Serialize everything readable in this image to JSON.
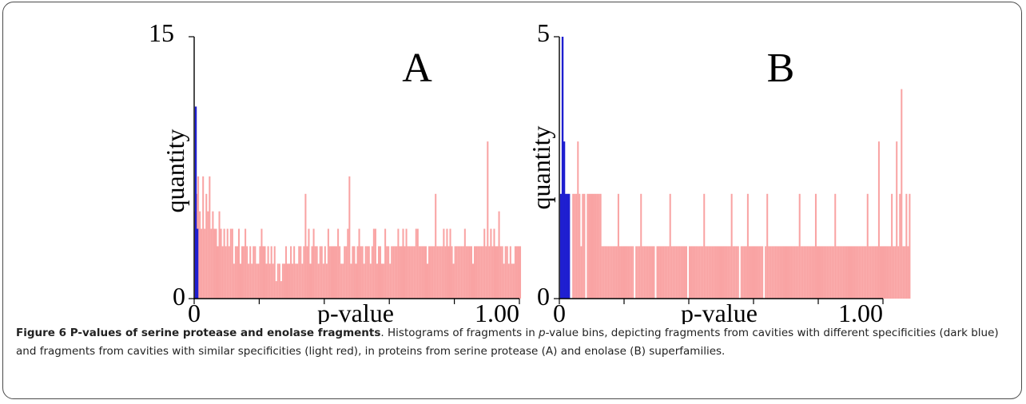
{
  "chart_data": [
    {
      "type": "bar",
      "panel_label": "A",
      "xlabel": "p-value",
      "ylabel": "quantity",
      "xlim": [
        0,
        1
      ],
      "ylim": [
        0,
        15
      ],
      "ytick_labels": [
        "0",
        "15"
      ],
      "xtick_labels": [
        "0",
        "1.00"
      ],
      "colors": {
        "different_specificity": "#1f1fd0",
        "similar_specificity": "#f9a3a3"
      },
      "series": [
        {
          "color": "different_specificity",
          "x": [
            0.005,
            0.01
          ],
          "values": [
            11,
            4
          ]
        },
        {
          "color": "similar_specificity",
          "x_start": 0.0,
          "x_step": 0.005,
          "values": [
            5,
            6,
            7,
            5,
            4,
            7,
            4,
            6,
            5,
            7,
            4,
            5,
            4,
            4,
            3,
            5,
            4,
            3,
            4,
            3,
            4,
            3,
            4,
            4,
            2,
            3,
            3,
            4,
            2,
            3,
            3,
            4,
            3,
            2,
            3,
            2,
            3,
            3,
            2,
            2,
            3,
            4,
            3,
            3,
            2,
            3,
            2,
            3,
            2,
            3,
            1,
            2,
            2,
            1,
            2,
            2,
            3,
            2,
            2,
            3,
            2,
            3,
            2,
            2,
            3,
            3,
            2,
            3,
            6,
            3,
            4,
            2,
            3,
            4,
            3,
            3,
            2,
            3,
            3,
            2,
            3,
            2,
            4,
            3,
            3,
            3,
            3,
            3,
            4,
            3,
            2,
            2,
            3,
            3,
            4,
            7,
            2,
            3,
            3,
            2,
            3,
            4,
            3,
            3,
            2,
            3,
            3,
            3,
            2,
            3,
            4,
            4,
            2,
            3,
            3,
            2,
            2,
            4,
            3,
            3,
            2,
            3,
            3,
            3,
            3,
            4,
            3,
            3,
            4,
            3,
            4,
            3,
            3,
            3,
            3,
            3,
            4,
            4,
            3,
            3,
            3,
            3,
            3,
            2,
            3,
            3,
            3,
            3,
            6,
            3,
            3,
            3,
            3,
            4,
            3,
            4,
            3,
            4,
            3,
            2,
            3,
            3,
            3,
            3,
            3,
            3,
            4,
            3,
            3,
            3,
            3,
            2,
            3,
            3,
            3,
            3,
            3,
            3,
            4,
            3,
            9,
            3,
            4,
            3,
            4,
            3,
            3,
            5,
            3,
            3,
            2,
            3,
            3,
            2,
            3,
            2,
            2,
            3,
            3,
            3,
            3
          ]
        }
      ]
    },
    {
      "type": "bar",
      "panel_label": "B",
      "xlabel": "p-value",
      "ylabel": "quantity",
      "xlim": [
        0,
        1
      ],
      "ylim": [
        0,
        5
      ],
      "ytick_labels": [
        "0",
        "5"
      ],
      "xtick_labels": [
        "0",
        "1.00"
      ],
      "colors": {
        "different_specificity": "#1f1fd0",
        "similar_specificity": "#f9a3a3"
      },
      "series": [
        {
          "color": "different_specificity",
          "x": [
            0.005,
            0.01,
            0.015,
            0.02,
            0.025,
            0.03
          ],
          "values": [
            2,
            5,
            3,
            2,
            2,
            2
          ]
        },
        {
          "color": "similar_specificity",
          "x_start": 0.04,
          "x_step": 0.005,
          "values": [
            2,
            2,
            2,
            3,
            2,
            1,
            2,
            2,
            0,
            2,
            2,
            2,
            2,
            2,
            2,
            2,
            2,
            2,
            1,
            1,
            1,
            1,
            1,
            1,
            1,
            1,
            1,
            1,
            2,
            1,
            1,
            1,
            1,
            1,
            1,
            1,
            1,
            1,
            0,
            1,
            1,
            1,
            2,
            1,
            1,
            1,
            1,
            1,
            1,
            1,
            1,
            0,
            1,
            1,
            1,
            1,
            1,
            1,
            1,
            1,
            2,
            1,
            1,
            1,
            1,
            1,
            1,
            1,
            1,
            1,
            1,
            0,
            1,
            1,
            1,
            1,
            1,
            1,
            1,
            1,
            1,
            2,
            1,
            1,
            1,
            1,
            1,
            1,
            1,
            1,
            1,
            1,
            1,
            1,
            1,
            1,
            1,
            1,
            2,
            1,
            1,
            1,
            1,
            0,
            1,
            1,
            1,
            1,
            2,
            1,
            1,
            1,
            1,
            1,
            1,
            1,
            1,
            1,
            0,
            1,
            2,
            1,
            1,
            1,
            1,
            1,
            1,
            1,
            1,
            1,
            1,
            1,
            1,
            1,
            1,
            1,
            1,
            1,
            1,
            1,
            2,
            1,
            1,
            1,
            1,
            1,
            1,
            1,
            1,
            1,
            2,
            1,
            1,
            1,
            1,
            1,
            1,
            1,
            1,
            1,
            1,
            1,
            2,
            1,
            1,
            1,
            1,
            1,
            1,
            1,
            1,
            1,
            1,
            1,
            1,
            1,
            1,
            1,
            1,
            1,
            1,
            1,
            2,
            1,
            1,
            1,
            1,
            1,
            1,
            3,
            1,
            1,
            1,
            1,
            1,
            1,
            1,
            2,
            1,
            1,
            3,
            1,
            2,
            4,
            1,
            1,
            2,
            1,
            2
          ]
        }
      ]
    }
  ],
  "caption": {
    "title": "Figure 6 P-values of serine protease and enolase fragments",
    "text_1": ". Histograms of fragments in ",
    "text_italic": "p",
    "text_2": "-value bins, depicting fragments from cavities with different specificities (dark blue) and fragments from cavities with similar specificities (light red), in proteins from serine protease (A) and enolase (B) superfamilies."
  }
}
